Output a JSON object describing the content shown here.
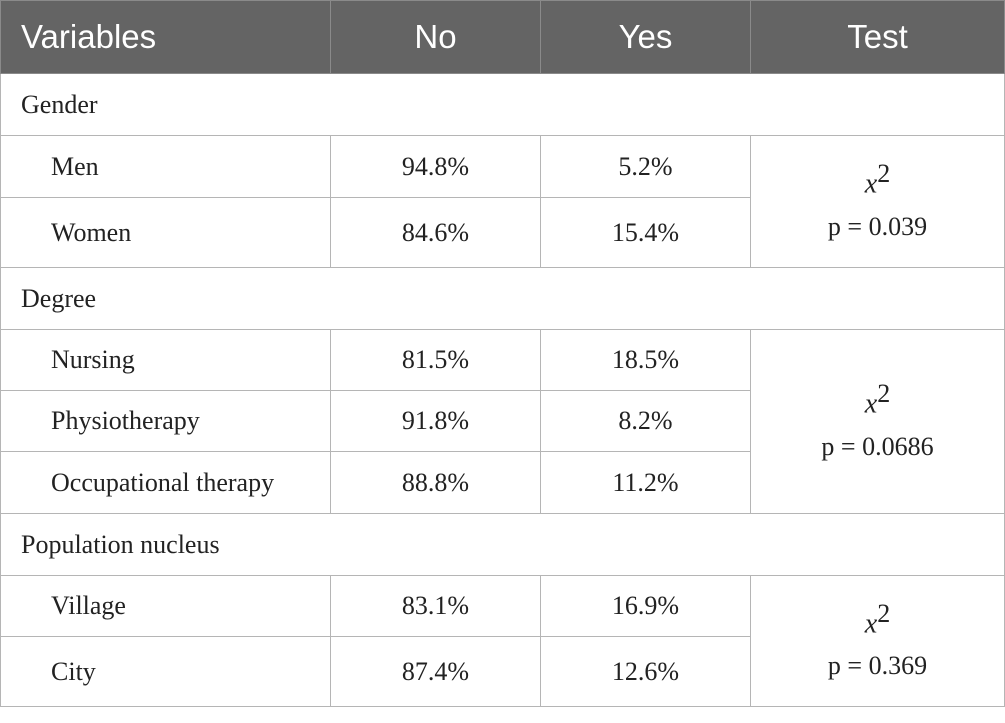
{
  "table": {
    "header": [
      "Variables",
      "No",
      "Yes",
      "Test"
    ],
    "groups": [
      {
        "name": "Gender",
        "rows": [
          [
            "Men",
            "94.8%",
            "5.2%"
          ],
          [
            "Women",
            "84.6%",
            "15.4%"
          ]
        ],
        "test": {
          "stat": "x",
          "stat_sup": "2",
          "p_text": "p = 0.039"
        }
      },
      {
        "name": "Degree",
        "rows": [
          [
            "Nursing",
            "81.5%",
            "18.5%"
          ],
          [
            "Physiotherapy",
            "91.8%",
            "8.2%"
          ],
          [
            "Occupational therapy",
            "88.8%",
            "11.2%"
          ]
        ],
        "test": {
          "stat": "x",
          "stat_sup": "2",
          "p_text": "p = 0.0686"
        }
      },
      {
        "name": "Population nucleus",
        "rows": [
          [
            "Village",
            "83.1%",
            "16.9%"
          ],
          [
            "City",
            "87.4%",
            "12.6%"
          ]
        ],
        "test": {
          "stat": "x",
          "stat_sup": "2",
          "p_text": "p = 0.369"
        }
      }
    ]
  }
}
